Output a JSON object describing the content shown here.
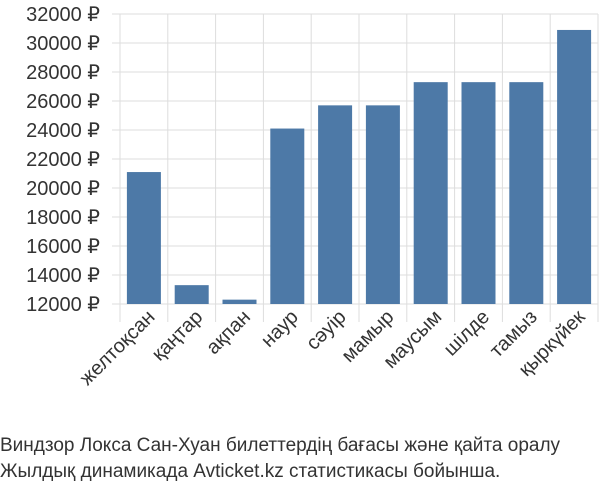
{
  "chart_data": {
    "type": "bar",
    "categories": [
      "желтоқсан",
      "қаңтар",
      "ақпан",
      "наур",
      "сәуір",
      "мамыр",
      "маусым",
      "шілде",
      "тамыз",
      "қыркүйек"
    ],
    "values": [
      21100,
      13300,
      12300,
      24100,
      25700,
      25700,
      27300,
      27300,
      27300,
      30900
    ],
    "ylim": [
      12000,
      32000
    ],
    "yticks": [
      12000,
      14000,
      16000,
      18000,
      20000,
      22000,
      24000,
      26000,
      28000,
      30000,
      32000
    ],
    "ytick_labels": [
      "12000 ₽",
      "14000 ₽",
      "16000 ₽",
      "18000 ₽",
      "20000 ₽",
      "22000 ₽",
      "24000 ₽",
      "26000 ₽",
      "28000 ₽",
      "30000 ₽",
      "32000 ₽"
    ],
    "bar_color": "#4d79a7",
    "grid": true,
    "caption_lines": [
      "Виндзор Локса Сан-Хуан билеттердің бағасы және қайта оралу",
      "Жылдық динамикада Avticket.kz статистикасы бойынша."
    ]
  }
}
